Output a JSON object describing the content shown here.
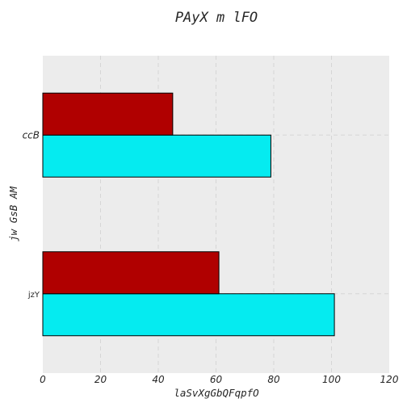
{
  "chart_data": {
    "type": "bar",
    "orientation": "horizontal",
    "title": "PAyX m  lFO",
    "xlabel": "laSvXgGbQFqpfO",
    "ylabel": "jw GsB   AM",
    "categories": [
      "jzY",
      "ccB"
    ],
    "series": [
      {
        "values": [
          101,
          79
        ],
        "color": "#05ebf0"
      },
      {
        "values": [
          61,
          45
        ],
        "color": "#b00000"
      }
    ],
    "xlim": [
      0,
      120
    ],
    "xticks": [
      0,
      20,
      40,
      60,
      80,
      100,
      120
    ],
    "grid": true,
    "legend": "none",
    "background": "#ececec"
  }
}
